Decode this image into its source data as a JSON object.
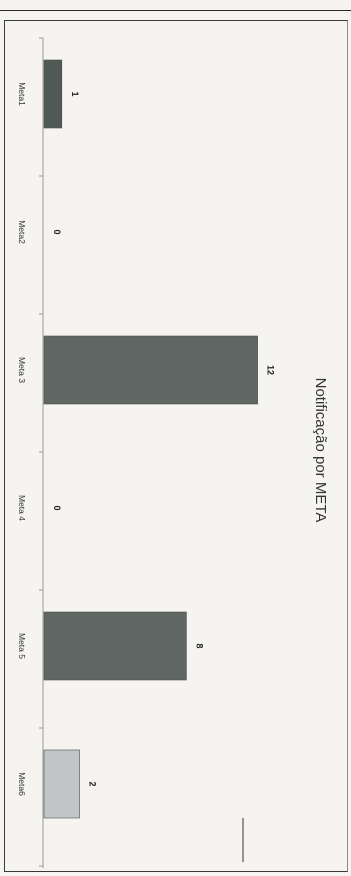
{
  "chart_data": {
    "type": "bar",
    "orientation": "horizontal",
    "title": "Notificação por META",
    "xlabel": "",
    "ylabel": "",
    "categories": [
      "Meta1",
      "Meta2",
      "Meta 3",
      "Meta 4",
      "Meta 5",
      "Meta6"
    ],
    "values": [
      1,
      0,
      12,
      0,
      8,
      2
    ],
    "data_labels": [
      "1",
      "0",
      "12",
      "0",
      "8",
      "2"
    ],
    "value_axis_range": [
      0,
      16
    ],
    "grid": false,
    "legend": "none",
    "colors": {
      "Meta1": "#4f5a57",
      "Meta2": "#5f6663",
      "Meta 3": "#5f6663",
      "Meta 4": "#5f6663",
      "Meta 5": "#5f6663",
      "Meta6": "#c2c6c6"
    },
    "axis_color": "#9a9a9a"
  }
}
